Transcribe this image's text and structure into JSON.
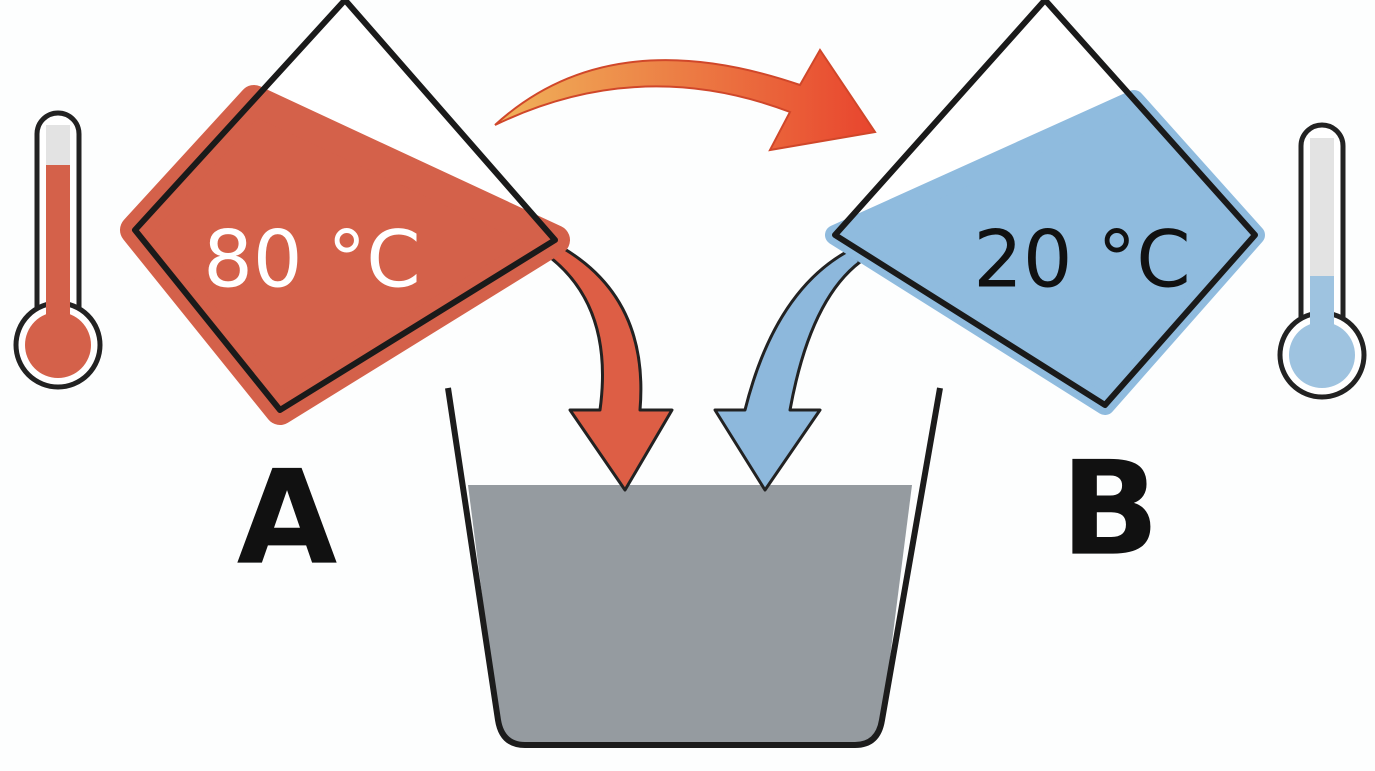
{
  "beakers": [
    {
      "label": "A",
      "temperature": "80 °C"
    },
    {
      "label": "B",
      "temperature": "20 °C"
    }
  ]
}
